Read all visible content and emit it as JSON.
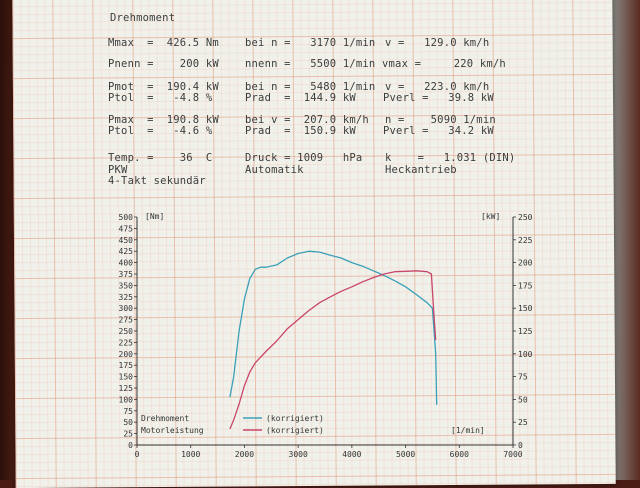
{
  "header": {
    "title": "Drehmoment",
    "rows": [
      [
        "Mmax  =  426.5 Nm",
        "bei n =   3170 1/min",
        "v =   129.0 km/h"
      ],
      [
        "Pnenn =    200 kW",
        "nnenn =   5500 1/min",
        "vmax =     220 km/h"
      ],
      [
        "Pmot  =  190.4 kW",
        "bei n =   5480 1/min",
        "v =   223.0 km/h"
      ],
      [
        "Ptol  =   -4.8 %",
        "Prad  =  144.9 kW",
        "Pverl =   39.8 kW"
      ],
      [
        "Pmax  =  190.8 kW",
        "bei v =  207.0 km/h",
        "n =    5090 1/min"
      ],
      [
        "Ptol  =   -4.6 %",
        "Prad  =  150.9 kW",
        "Pverl =   34.2 kW"
      ],
      [
        "Temp. =    36  C",
        "Druck = 1009   hPa",
        "k    =   1.031 (DIN)"
      ],
      [
        "PKW",
        "Automatik",
        "Heckantrieb"
      ]
    ],
    "footer": "4-Takt sekundär"
  },
  "chart_data": {
    "type": "line",
    "x_unit": "[1/min]",
    "left_unit": "[Nm]",
    "right_unit": "[kW]",
    "xlim": [
      0,
      7000
    ],
    "x_ticks": [
      0,
      1000,
      2000,
      3000,
      4000,
      5000,
      6000,
      7000
    ],
    "left_ylim": [
      0,
      500
    ],
    "left_ticks": [
      0,
      25,
      50,
      75,
      100,
      125,
      150,
      175,
      200,
      225,
      250,
      275,
      300,
      325,
      350,
      375,
      400,
      425,
      450,
      475,
      500
    ],
    "right_ylim": [
      0,
      250
    ],
    "right_ticks": [
      0,
      25,
      50,
      75,
      100,
      125,
      150,
      175,
      200,
      225,
      250
    ],
    "grid": true,
    "legend": [
      {
        "label": "Drehmoment",
        "note": "(korrigiert)",
        "color": "#3aa0b8"
      },
      {
        "label": "Motorleistung",
        "note": "(korrigiert)",
        "color": "#c8466a"
      }
    ],
    "series": [
      {
        "name": "Drehmoment",
        "axis": "left",
        "color": "#3aa0b8",
        "x": [
          1730,
          1800,
          1900,
          2000,
          2100,
          2200,
          2300,
          2400,
          2600,
          2800,
          3000,
          3200,
          3400,
          3600,
          3800,
          4000,
          4200,
          4400,
          4600,
          4800,
          5000,
          5200,
          5400,
          5500,
          5560,
          5580
        ],
        "y": [
          105,
          150,
          250,
          320,
          365,
          385,
          390,
          390,
          395,
          410,
          420,
          425,
          423,
          416,
          410,
          400,
          392,
          382,
          372,
          360,
          347,
          330,
          312,
          300,
          200,
          88
        ]
      },
      {
        "name": "Motorleistung",
        "axis": "left",
        "color": "#c8466a",
        "x": [
          1730,
          1800,
          1900,
          2000,
          2100,
          2200,
          2400,
          2600,
          2800,
          3000,
          3200,
          3400,
          3600,
          3800,
          4000,
          4200,
          4400,
          4600,
          4800,
          5000,
          5200,
          5400,
          5480,
          5520,
          5560
        ],
        "y": [
          35,
          55,
          90,
          130,
          160,
          180,
          205,
          228,
          255,
          275,
          295,
          312,
          325,
          337,
          347,
          358,
          367,
          375,
          380,
          381,
          382,
          380,
          375,
          300,
          230
        ]
      }
    ]
  }
}
